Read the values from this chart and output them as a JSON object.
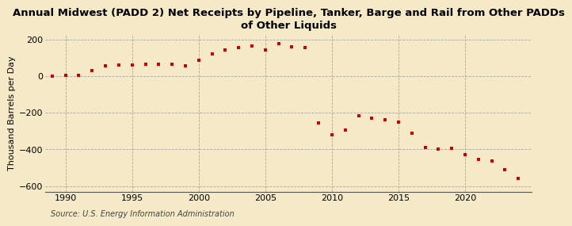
{
  "title": "Annual Midwest (PADD 2) Net Receipts by Pipeline, Tanker, Barge and Rail from Other PADDs\nof Other Liquids",
  "ylabel": "Thousand Barrels per Day",
  "source": "Source: U.S. Energy Information Administration",
  "background_color": "#f5e9c8",
  "plot_bg_color": "#f5e9c8",
  "marker_color": "#cc0000",
  "years": [
    1989,
    1990,
    1991,
    1992,
    1993,
    1994,
    1995,
    1996,
    1997,
    1998,
    1999,
    2000,
    2001,
    2002,
    2003,
    2004,
    2005,
    2006,
    2007,
    2008,
    2009,
    2010,
    2011,
    2012,
    2013,
    2014,
    2015,
    2016,
    2017,
    2018,
    2019,
    2020,
    2021,
    2022,
    2023,
    2024
  ],
  "values": [
    -2,
    2,
    5,
    30,
    55,
    60,
    60,
    65,
    65,
    65,
    55,
    85,
    120,
    140,
    155,
    165,
    140,
    175,
    160,
    155,
    -255,
    -320,
    -295,
    -215,
    -230,
    -240,
    -250,
    -310,
    -390,
    -400,
    -395,
    -430,
    -455,
    -465,
    -510,
    -560
  ],
  "xlim": [
    1988.5,
    2025
  ],
  "ylim": [
    -630,
    230
  ],
  "yticks": [
    -600,
    -400,
    -200,
    0,
    200
  ],
  "xticks": [
    1990,
    1995,
    2000,
    2005,
    2010,
    2015,
    2020
  ],
  "title_fontsize": 9.5,
  "label_fontsize": 8,
  "tick_fontsize": 8,
  "source_fontsize": 7
}
